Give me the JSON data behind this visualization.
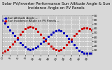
{
  "title": "Solar PV/Inverter Performance Sun Altitude Angle & Sun Incidence Angle on PV Panels",
  "legend_blue": "Sun Altitude Angle --",
  "legend_red": "Sun Incidence Angle on PV Panels --",
  "background_color": "#d8d8d8",
  "plot_bg_color": "#c8c8c8",
  "grid_color": "#ffffff",
  "blue_color": "#0000bb",
  "red_color": "#cc0000",
  "blue_x": [
    0,
    1,
    2,
    3,
    4,
    5,
    6,
    7,
    8,
    9,
    10,
    11,
    12,
    13,
    14,
    15,
    16,
    17,
    18,
    19,
    20,
    21,
    22,
    23,
    24,
    25,
    26,
    27,
    28,
    29,
    30,
    31,
    32,
    33,
    34,
    35
  ],
  "blue_y": [
    78,
    72,
    65,
    57,
    50,
    43,
    36,
    28,
    22,
    17,
    13,
    12,
    13,
    16,
    20,
    25,
    30,
    36,
    42,
    47,
    52,
    55,
    56,
    54,
    50,
    44,
    37,
    30,
    23,
    16,
    10,
    6,
    4,
    3,
    3,
    4
  ],
  "red_x": [
    0,
    1,
    2,
    3,
    4,
    5,
    6,
    7,
    8,
    9,
    10,
    11,
    12,
    13,
    14,
    15,
    16,
    17,
    18,
    19,
    20,
    21,
    22,
    23,
    24,
    25,
    26,
    27,
    28,
    29,
    30,
    31,
    32,
    33,
    34,
    35
  ],
  "red_y": [
    5,
    8,
    12,
    18,
    24,
    31,
    38,
    46,
    53,
    59,
    63,
    65,
    63,
    59,
    53,
    46,
    39,
    32,
    25,
    19,
    14,
    11,
    10,
    12,
    16,
    22,
    29,
    36,
    43,
    49,
    55,
    59,
    61,
    61,
    59,
    56
  ],
  "xlim_min": 0,
  "xlim_max": 35,
  "ylim_min": 0,
  "ylim_max": 90,
  "yticks": [
    10,
    20,
    30,
    40,
    50,
    60,
    70,
    80,
    90
  ],
  "title_fontsize": 4.0,
  "tick_fontsize": 3.2,
  "legend_fontsize": 3.0,
  "marker_size": 1.2
}
